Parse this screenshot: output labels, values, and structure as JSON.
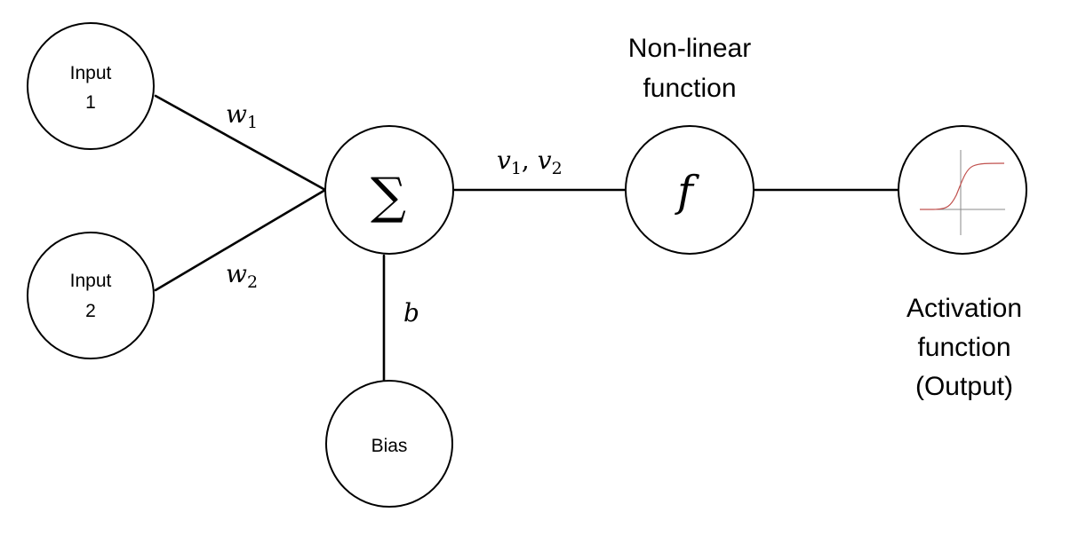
{
  "nodes": {
    "input1": {
      "line1": "Input",
      "line2": "1"
    },
    "input2": {
      "line1": "Input",
      "line2": "2"
    },
    "sum": {
      "symbol": "∑"
    },
    "bias": {
      "label": "Bias"
    },
    "func": {
      "symbol": "f"
    }
  },
  "edges": {
    "w1": {
      "base": "w",
      "sub": "1"
    },
    "w2": {
      "base": "w",
      "sub": "2"
    },
    "v": {
      "base1": "v",
      "sub1": "1",
      "sep": ", ",
      "base2": "v",
      "sub2": "2"
    },
    "b": {
      "label": "b"
    }
  },
  "labels": {
    "nonlinear": {
      "line1": "Non-linear",
      "line2": "function"
    },
    "activation": {
      "line1": "Activation",
      "line2": "function",
      "line3": "(Output)"
    }
  },
  "colors": {
    "sigmoid_curve": "#c0504d",
    "axis": "#8a8a8a"
  }
}
